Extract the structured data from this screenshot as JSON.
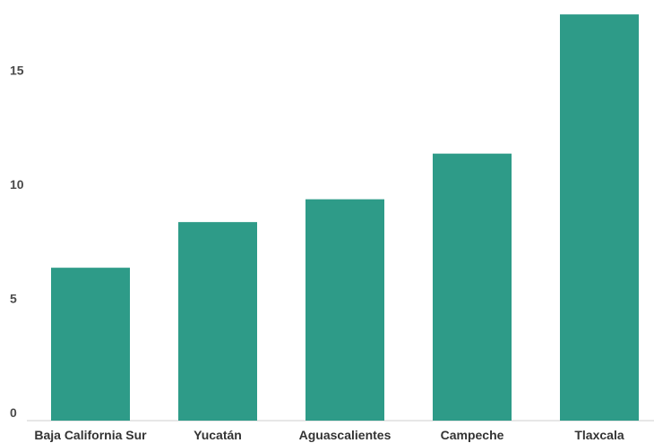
{
  "chart_data": {
    "type": "bar",
    "title": "",
    "xlabel": "",
    "ylabel": "",
    "categories": [
      "Baja California Sur",
      "Yucatán",
      "Aguascalientes",
      "Campeche",
      "Tlaxcala"
    ],
    "values": [
      6.7,
      8.7,
      9.7,
      11.7,
      17.8
    ],
    "ylim": [
      0,
      18
    ],
    "yticks": [
      0,
      5,
      10,
      15
    ],
    "grid": false,
    "legend": "none",
    "bar_color": "#2e9b88"
  }
}
